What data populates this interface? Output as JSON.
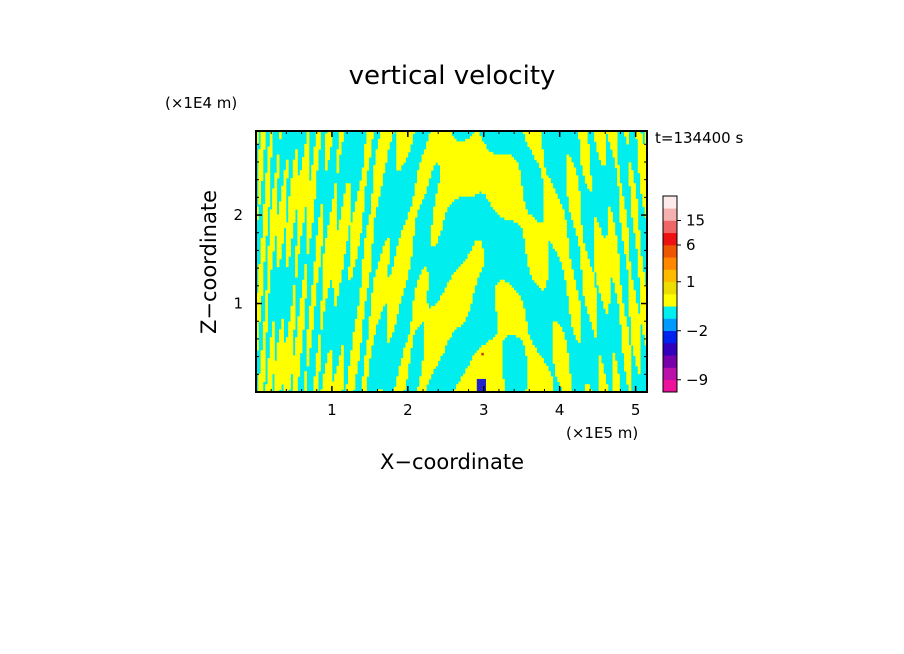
{
  "chart_data": {
    "type": "heatmap",
    "title": "vertical velocity",
    "xlabel": "X−coordinate",
    "ylabel": "Z−coordinate",
    "x_unit": "(×1E5 m)",
    "y_unit": "(×1E4 m)",
    "time_label": "t=134400 s",
    "xlim": [
      0,
      5.15
    ],
    "ylim": [
      0,
      2.95
    ],
    "x_ticks": [
      {
        "value": 1,
        "label": "1"
      },
      {
        "value": 2,
        "label": "2"
      },
      {
        "value": 3,
        "label": "3"
      },
      {
        "value": 4,
        "label": "4"
      },
      {
        "value": 5,
        "label": "5"
      }
    ],
    "y_ticks": [
      {
        "value": 1,
        "label": "1"
      },
      {
        "value": 2,
        "label": "2"
      }
    ],
    "field_colors": {
      "negative": "#00eeee",
      "positive": "#ffff00",
      "strong_positive": "#cc2222",
      "strong_negative": "#2222cc"
    },
    "colorbar": {
      "min": -12,
      "max": 24,
      "levels": [
        {
          "from": -12,
          "to": -9,
          "color": "#ee1199"
        },
        {
          "from": -9,
          "to": -6,
          "color": "#bb11aa"
        },
        {
          "from": -6,
          "to": -4,
          "color": "#7700aa"
        },
        {
          "from": -4,
          "to": -3,
          "color": "#3300bb"
        },
        {
          "from": -3,
          "to": -2,
          "color": "#0022ee"
        },
        {
          "from": -2,
          "to": -1,
          "color": "#0099ff"
        },
        {
          "from": -1,
          "to": 0,
          "color": "#00eeee"
        },
        {
          "from": 0,
          "to": 0.5,
          "color": "#ffff00"
        },
        {
          "from": 0.5,
          "to": 1,
          "color": "#eedd00"
        },
        {
          "from": 1,
          "to": 2,
          "color": "#ffbb00"
        },
        {
          "from": 2,
          "to": 4,
          "color": "#ff8800"
        },
        {
          "from": 4,
          "to": 6,
          "color": "#ee5500"
        },
        {
          "from": 6,
          "to": 10,
          "color": "#ee1111"
        },
        {
          "from": 10,
          "to": 15,
          "color": "#ee6666"
        },
        {
          "from": 15,
          "to": 20,
          "color": "#f5b0b0"
        },
        {
          "from": 20,
          "to": 24,
          "color": "#fdeaea"
        }
      ],
      "labels": [
        {
          "value": 15,
          "label": "15"
        },
        {
          "value": 6,
          "label": "6"
        },
        {
          "value": 1,
          "label": "1"
        },
        {
          "value": -2,
          "label": "−2"
        },
        {
          "value": -9,
          "label": "−9"
        }
      ]
    }
  }
}
